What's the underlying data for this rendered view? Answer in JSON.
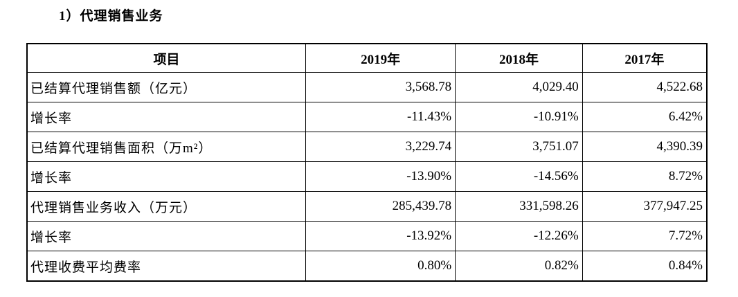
{
  "page": {
    "title": "1）代理销售业务"
  },
  "colors": {
    "background": "#ffffff",
    "text": "#000000",
    "border": "#000000"
  },
  "table": {
    "columns": [
      "项目",
      "2019年",
      "2018年",
      "2017年"
    ],
    "rows": [
      {
        "label": "已结算代理销售额（亿元）",
        "values": [
          "3,568.78",
          "4,029.40",
          "4,522.68"
        ]
      },
      {
        "label": "增长率",
        "values": [
          "-11.43%",
          "-10.91%",
          "6.42%"
        ]
      },
      {
        "label": "已结算代理销售面积（万m²）",
        "values": [
          "3,229.74",
          "3,751.07",
          "4,390.39"
        ]
      },
      {
        "label": "增长率",
        "values": [
          "-13.90%",
          "-14.56%",
          "8.72%"
        ]
      },
      {
        "label": "代理销售业务收入（万元）",
        "values": [
          "285,439.78",
          "331,598.26",
          "377,947.25"
        ]
      },
      {
        "label": "增长率",
        "values": [
          "-13.92%",
          "-12.26%",
          "7.72%"
        ]
      },
      {
        "label": "代理收费平均费率",
        "values": [
          "0.80%",
          "0.82%",
          "0.84%"
        ]
      }
    ]
  }
}
